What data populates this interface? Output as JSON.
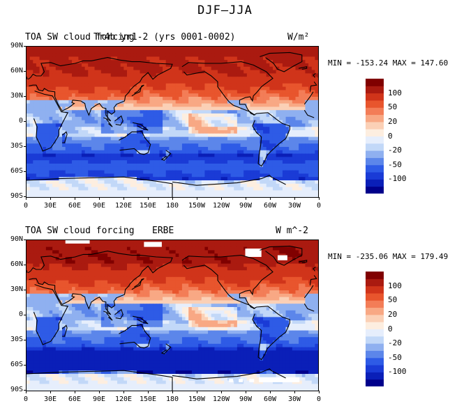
{
  "figure": {
    "title": "DJF–JJA"
  },
  "colors": {
    "levels": [
      "#00008b",
      "#0a1fb8",
      "#1a3bd6",
      "#2e5be6",
      "#5c86ea",
      "#8fb0f0",
      "#c2d8f8",
      "#e6eefc",
      "#fdeee0",
      "#fbd0b6",
      "#f8a884",
      "#f37d57",
      "#e8552d",
      "#d0341a",
      "#aa1a10",
      "#800000"
    ],
    "coastline": "#000000",
    "missing": "#ffffff"
  },
  "panels": [
    {
      "id": "model",
      "title_left": "TOA SW cloud forcing",
      "title_center": "Tr4b yr1-2 (yrs 0001-0002)",
      "units": "W/m²",
      "stats": "MIN = -153.24  MAX = 147.60",
      "min": -153.24,
      "max": 147.6
    },
    {
      "id": "obs",
      "title_left": "TOA SW cloud forcing",
      "title_center": "ERBE",
      "units": "W  m^-2",
      "stats": "MIN = -235.06  MAX = 179.49",
      "min": -235.06,
      "max": 179.49
    }
  ],
  "axes": {
    "lat_labels": [
      "90N",
      "60N",
      "30N",
      "0",
      "30S",
      "60S",
      "90S"
    ],
    "lon_labels": [
      "0",
      "30E",
      "60E",
      "90E",
      "120E",
      "150E",
      "180",
      "150W",
      "120W",
      "90W",
      "60W",
      "30W",
      "0"
    ]
  },
  "colorbar": {
    "tick_labels": [
      "100",
      "50",
      "20",
      "0",
      "-20",
      "-50",
      "-100"
    ]
  }
}
